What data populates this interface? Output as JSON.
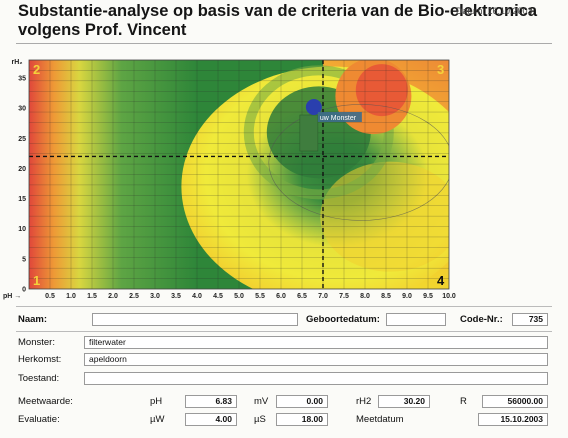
{
  "header": {
    "title_line1": "Substantie-analyse op basis van de criteria van de Bio-elektronica",
    "title_line2": "volgens Prof. Vincent",
    "date": "Datum: 16.10.2003"
  },
  "chart_data": {
    "type": "heatmap",
    "title": "",
    "xlabel": "pH",
    "ylabel": "rH₂",
    "x_ticks": [
      "0.5",
      "1.0",
      "1.5",
      "2.0",
      "2.5",
      "3.0",
      "3.5",
      "4.0",
      "4.5",
      "5.0",
      "5.5",
      "6.0",
      "6.5",
      "7.0",
      "7.5",
      "8.0",
      "8.5",
      "9.0",
      "9.5",
      "10.0"
    ],
    "y_ticks": [
      "0",
      "5",
      "10",
      "15",
      "20",
      "25",
      "30",
      "35"
    ],
    "xlim": [
      0,
      10
    ],
    "ylim": [
      0,
      38
    ],
    "grid": true,
    "reference_lines": {
      "pH": 7.0,
      "rH2": 22
    },
    "quadrants": [
      "1",
      "2",
      "3",
      "4"
    ],
    "sample": {
      "label": "uw Monster",
      "pH": 6.83,
      "rH2": 30.2
    }
  },
  "form": {
    "naam_label": "Naam:",
    "naam_value": "",
    "geboortedatum_label": "Geboortedatum:",
    "geboortedatum_value": "",
    "code_label": "Code-Nr.:",
    "code_value": "735",
    "monster_label": "Monster:",
    "monster_value": "filterwater",
    "herkomst_label": "Herkomst:",
    "herkomst_value": "apeldoorn",
    "toestand_label": "Toestand:",
    "toestand_value": "",
    "meetwaarde_label": "Meetwaarde:",
    "evaluatie_label": "Evaluatie:",
    "ph_label": "pH",
    "ph_value": "6.83",
    "mv_label": "mV",
    "mv_value": "0.00",
    "rh2_label": "rH2",
    "rh2_value": "30.20",
    "r_label": "R",
    "r_value": "56000.00",
    "uw_label": "µW",
    "uw_value": "4.00",
    "us_label": "µS",
    "us_value": "18.00",
    "meetdatum_label": "Meetdatum",
    "meetdatum_value": "15.10.2003"
  },
  "colors": {
    "green": "#2f8a3a",
    "yellow": "#f2e52c",
    "orange": "#f19a2c",
    "red": "#e0463c",
    "sample_dot": "#2a3fae"
  }
}
